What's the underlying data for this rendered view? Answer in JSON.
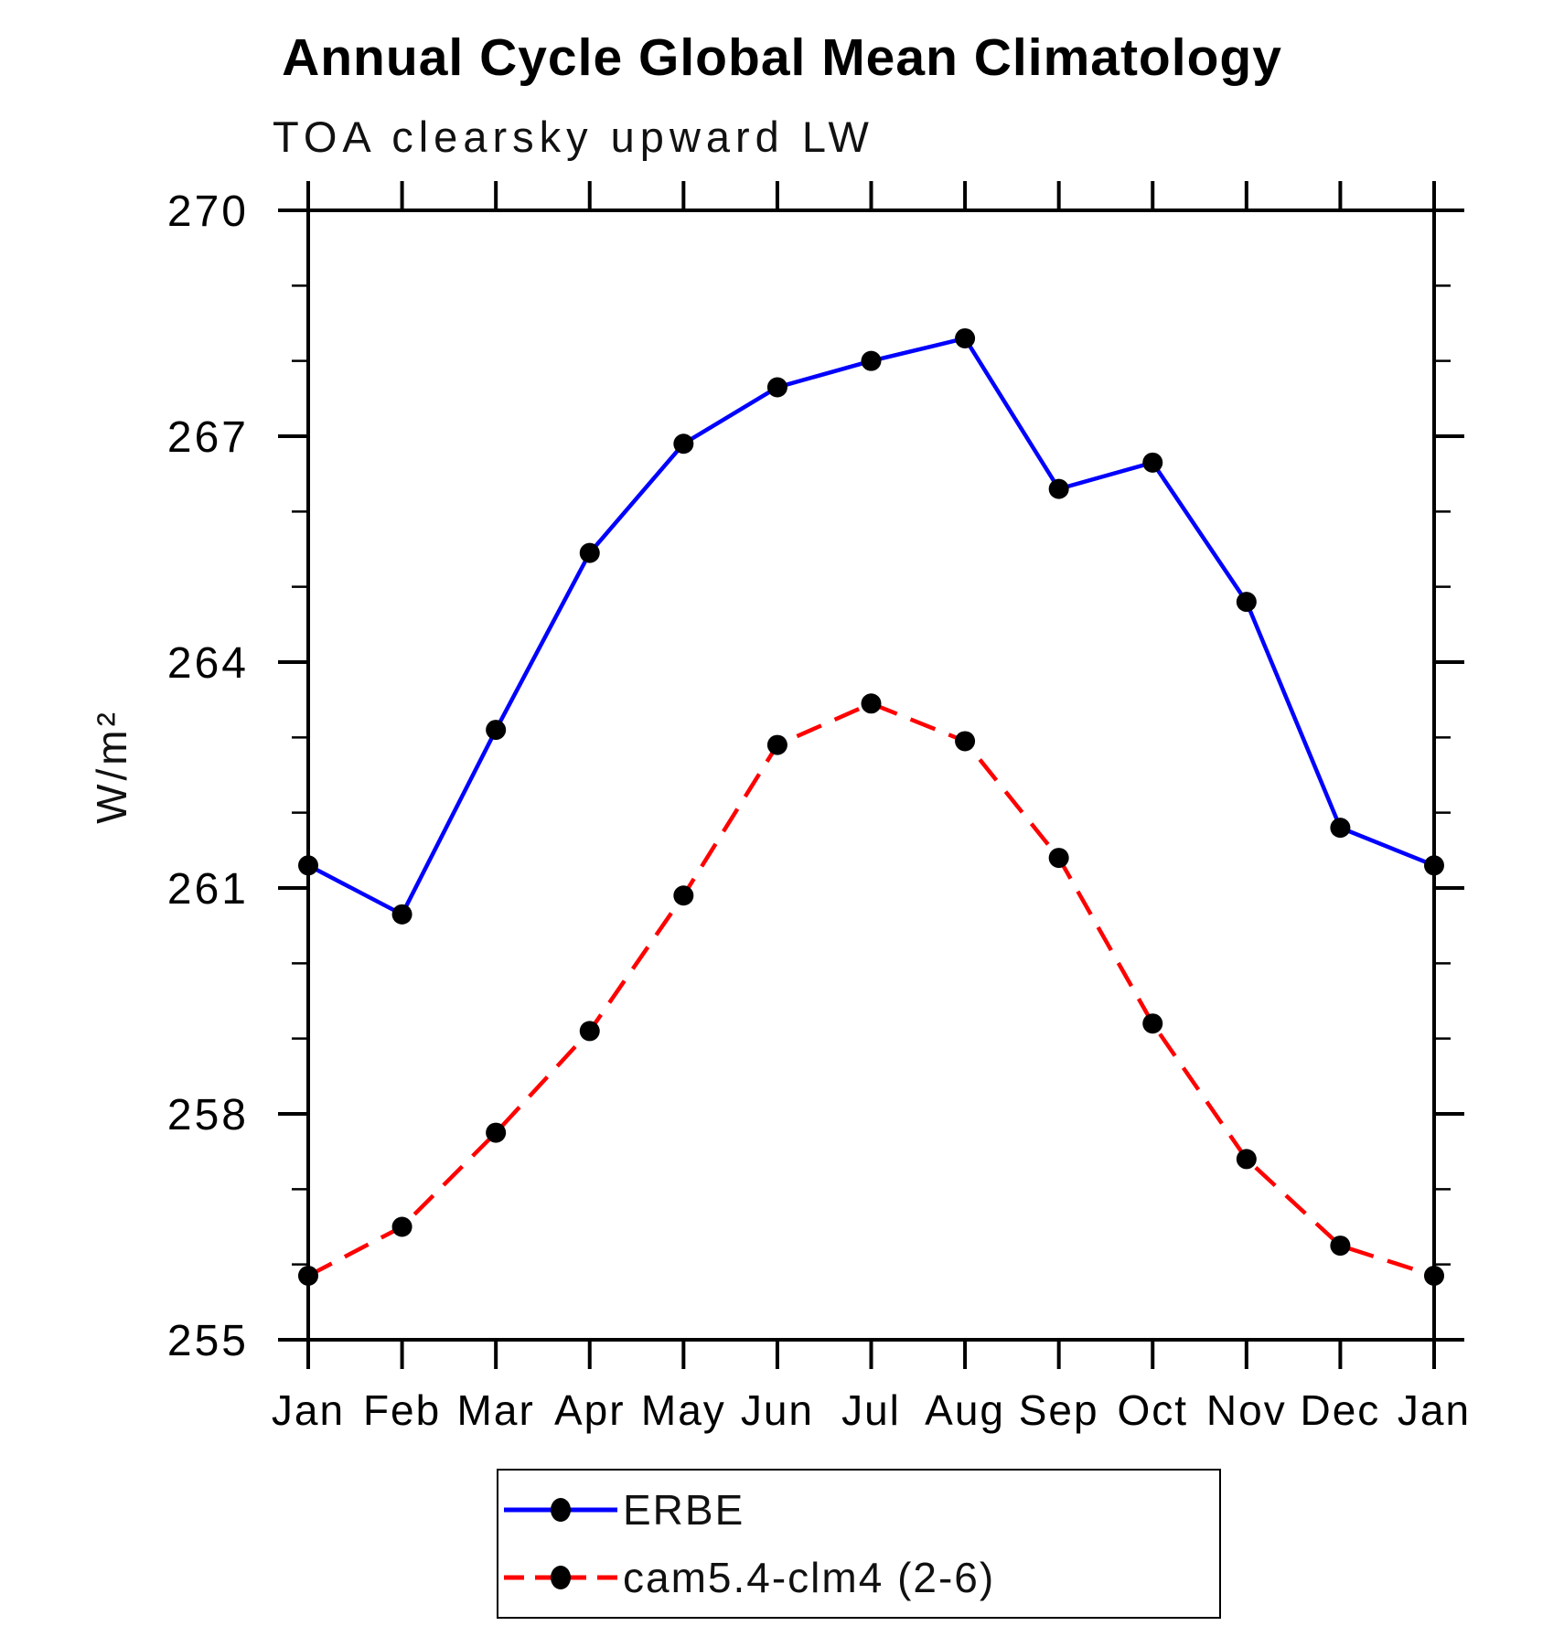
{
  "page": {
    "background": "#ffffff"
  },
  "chart_data": {
    "type": "line",
    "title": "Annual Cycle Global Mean Climatology",
    "subtitle": "TOA clearsky upward LW",
    "xlabel": "",
    "ylabel": "W/m²",
    "categories": [
      "Jan",
      "Feb",
      "Mar",
      "Apr",
      "May",
      "Jun",
      "Jul",
      "Aug",
      "Sep",
      "Oct",
      "Nov",
      "Dec",
      "Jan"
    ],
    "ylim": [
      255,
      270
    ],
    "ytick_major": [
      255,
      258,
      261,
      264,
      267,
      270
    ],
    "ytick_labels": [
      "255",
      "258",
      "261",
      "264",
      "267",
      "270"
    ],
    "ytick_minor_step": 1,
    "grid": false,
    "legend_position": "bottom",
    "axis_color": "#000000",
    "marker_color": "#000000",
    "series": [
      {
        "name": "ERBE",
        "color": "#0000ff",
        "style": "solid",
        "marker": "circle",
        "values": [
          261.3,
          260.65,
          263.1,
          265.45,
          266.9,
          267.65,
          268.0,
          268.3,
          266.3,
          266.65,
          264.8,
          261.8,
          261.3
        ]
      },
      {
        "name": "cam5.4-clm4 (2-6)",
        "color": "#ff0000",
        "style": "dashed",
        "marker": "circle",
        "values": [
          255.85,
          256.5,
          257.75,
          259.1,
          260.9,
          262.9,
          263.45,
          262.95,
          261.4,
          259.2,
          257.4,
          256.25,
          255.85
        ]
      }
    ]
  }
}
